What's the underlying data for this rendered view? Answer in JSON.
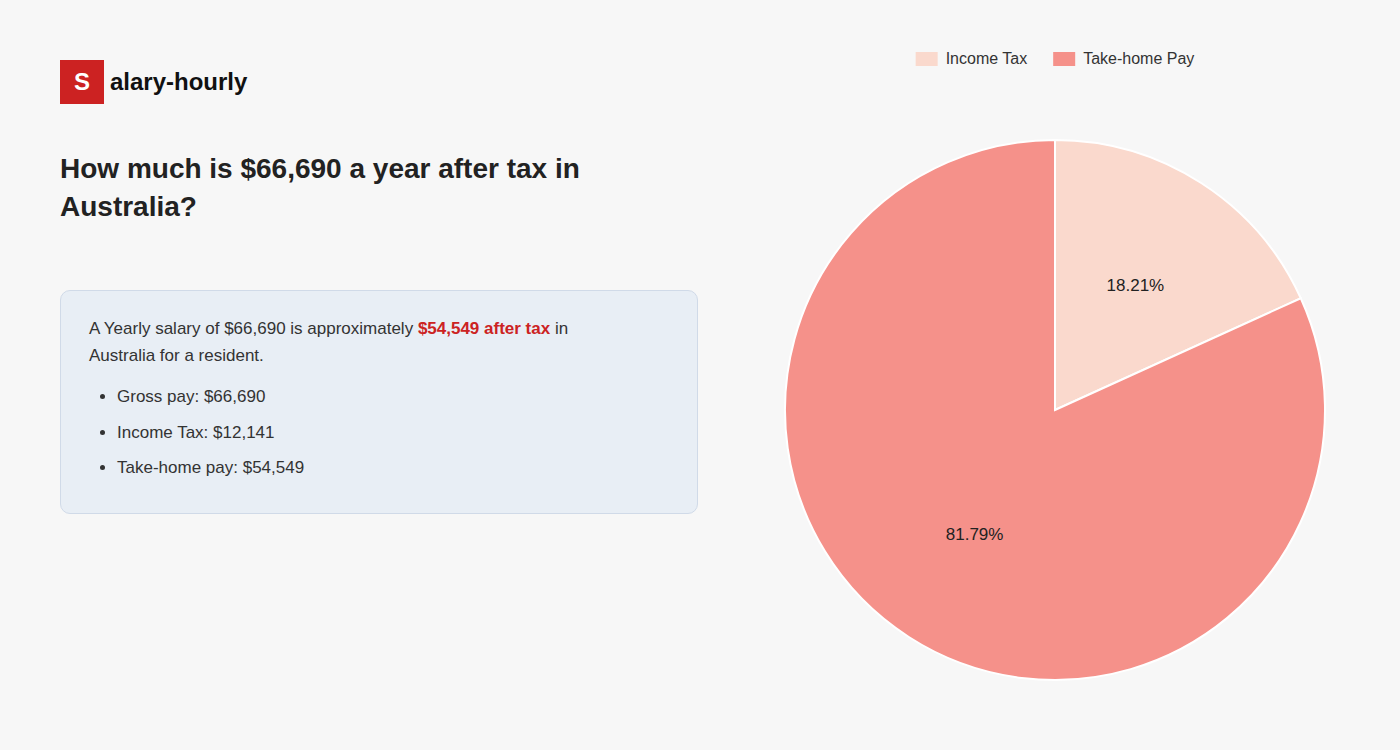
{
  "chart_data": {
    "type": "pie",
    "title": "How much is $66,690 a year after tax in Australia?",
    "categories": [
      "Income Tax",
      "Take-home Pay"
    ],
    "values": [
      18.21,
      81.79
    ],
    "value_labels": [
      "18.21%",
      "81.79%"
    ],
    "colors": [
      "#fad9cd",
      "#f5918a"
    ],
    "data_labels": true,
    "legend": "top",
    "annotations": [
      {
        "text": "S",
        "color": "#cc2222"
      },
      {
        "text": "alary-hourly"
      },
      {
        "text": "A Yearly salary of $66,690 is approximately "
      },
      {
        "text": "$54,549 after tax",
        "color": "#cc2222"
      },
      {
        "text": " in"
      },
      {
        "text": "Australia for a resident."
      },
      {
        "text": "Gross pay: $66,690"
      },
      {
        "text": "Income Tax: $12,141"
      },
      {
        "text": "Take-home pay: $54,549"
      }
    ]
  }
}
